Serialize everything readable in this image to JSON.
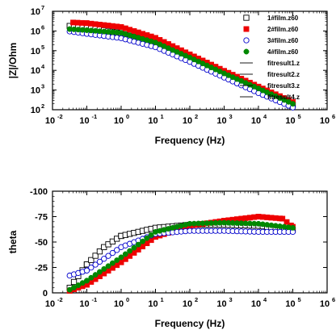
{
  "chart_data": [
    {
      "type": "scatter",
      "xlabel": "Frequency (Hz)",
      "ylabel": "|Z|/Ohm",
      "x_scale": "log",
      "y_scale": "log",
      "xlim": [
        0.01,
        1000000
      ],
      "ylim": [
        100,
        10000000
      ],
      "x_ticks": [
        {
          "base": "10",
          "exp": "-2"
        },
        {
          "base": "10",
          "exp": "-1"
        },
        {
          "base": "10",
          "exp": "0"
        },
        {
          "base": "10",
          "exp": "1"
        },
        {
          "base": "10",
          "exp": "2"
        },
        {
          "base": "10",
          "exp": "3"
        },
        {
          "base": "10",
          "exp": "4"
        },
        {
          "base": "10",
          "exp": "5"
        },
        {
          "base": "10",
          "exp": "6"
        }
      ],
      "y_ticks": [
        {
          "base": "10",
          "exp": "2"
        },
        {
          "base": "10",
          "exp": "3"
        },
        {
          "base": "10",
          "exp": "4"
        },
        {
          "base": "10",
          "exp": "5"
        },
        {
          "base": "10",
          "exp": "6"
        },
        {
          "base": "10",
          "exp": "7"
        }
      ],
      "legend_position": "top-right",
      "legend": [
        {
          "label": "1#film.z60",
          "marker": "square-open",
          "color": "#000000"
        },
        {
          "label": "2#film.z60",
          "marker": "square-filled",
          "color": "#ee0000"
        },
        {
          "label": "3#film.z60",
          "marker": "circle-open",
          "color": "#0000cc"
        },
        {
          "label": "4#film.z60",
          "marker": "circle-filled",
          "color": "#008800"
        },
        {
          "label": "fitresult1.z",
          "marker": "line",
          "color": "#000000"
        },
        {
          "label": "fitresult2.z",
          "marker": "line",
          "color": "#000000"
        },
        {
          "label": "fitresult3.z",
          "marker": "line",
          "color": "#000000"
        },
        {
          "label": "fitresult4.z",
          "marker": "line",
          "color": "#000000"
        }
      ],
      "series": [
        {
          "label_ref": "1#film.z60",
          "color": "#000000",
          "points": [
            [
              0.0316,
              1800000
            ],
            [
              0.1,
              1500000
            ],
            [
              1,
              780000
            ],
            [
              10,
              250000
            ],
            [
              100,
              40000
            ],
            [
              1000,
              6000
            ],
            [
              10000,
              1000
            ],
            [
              100000,
              180
            ]
          ]
        },
        {
          "label_ref": "2#film.z60",
          "color": "#ee0000",
          "points": [
            [
              0.04,
              2700000
            ],
            [
              0.1,
              2500000
            ],
            [
              1,
              1600000
            ],
            [
              10,
              450000
            ],
            [
              100,
              65000
            ],
            [
              1000,
              9500
            ],
            [
              10000,
              1500
            ],
            [
              100000,
              250
            ]
          ]
        },
        {
          "label_ref": "3#film.z60",
          "color": "#0000cc",
          "points": [
            [
              0.0316,
              950000
            ],
            [
              0.1,
              720000
            ],
            [
              1,
              430000
            ],
            [
              10,
              150000
            ],
            [
              100,
              27000
            ],
            [
              1000,
              4300
            ],
            [
              10000,
              700
            ],
            [
              100000,
              130
            ]
          ]
        },
        {
          "label_ref": "4#film.z60",
          "color": "#008800",
          "points": [
            [
              0.0316,
              1250000
            ],
            [
              0.1,
              1100000
            ],
            [
              1,
              800000
            ],
            [
              10,
              260000
            ],
            [
              100,
              45000
            ],
            [
              1000,
              7000
            ],
            [
              10000,
              1200
            ],
            [
              100000,
              200
            ]
          ]
        }
      ]
    },
    {
      "type": "scatter",
      "xlabel": "Frequency (Hz)",
      "ylabel": "theta",
      "x_scale": "log",
      "xlim": [
        0.01,
        1000000
      ],
      "ylim": [
        0,
        -100
      ],
      "y_ticks": [
        "0",
        "-25",
        "-50",
        "-75",
        "-100"
      ],
      "x_ticks": [
        {
          "base": "10",
          "exp": "-2"
        },
        {
          "base": "10",
          "exp": "-1"
        },
        {
          "base": "10",
          "exp": "0"
        },
        {
          "base": "10",
          "exp": "1"
        },
        {
          "base": "10",
          "exp": "2"
        },
        {
          "base": "10",
          "exp": "3"
        },
        {
          "base": "10",
          "exp": "4"
        },
        {
          "base": "10",
          "exp": "5"
        },
        {
          "base": "10",
          "exp": "6"
        }
      ],
      "series": [
        {
          "label_ref": "1#film.z60",
          "color": "#000000",
          "points": [
            [
              0.0316,
              -5
            ],
            [
              0.1,
              -28
            ],
            [
              0.316,
              -45
            ],
            [
              1,
              -56
            ],
            [
              10,
              -64
            ],
            [
              100,
              -67
            ],
            [
              1000,
              -67
            ],
            [
              10000,
              -66
            ],
            [
              100000,
              -62
            ]
          ]
        },
        {
          "label_ref": "2#film.z60",
          "color": "#ee0000",
          "points": [
            [
              0.0316,
              -2
            ],
            [
              0.1,
              -8
            ],
            [
              1,
              -30
            ],
            [
              10,
              -55
            ],
            [
              100,
              -66
            ],
            [
              1000,
              -71
            ],
            [
              10000,
              -75
            ],
            [
              50000,
              -73
            ],
            [
              100000,
              -65
            ]
          ]
        },
        {
          "label_ref": "3#film.z60",
          "color": "#0000cc",
          "points": [
            [
              0.0316,
              -17
            ],
            [
              0.1,
              -22
            ],
            [
              1,
              -45
            ],
            [
              10,
              -58
            ],
            [
              100,
              -61
            ],
            [
              1000,
              -61
            ],
            [
              10000,
              -60
            ],
            [
              100000,
              -60
            ]
          ]
        },
        {
          "label_ref": "4#film.z60",
          "color": "#008800",
          "points": [
            [
              0.0316,
              -3
            ],
            [
              0.1,
              -12
            ],
            [
              1,
              -35
            ],
            [
              10,
              -60
            ],
            [
              100,
              -68
            ],
            [
              1000,
              -69
            ],
            [
              10000,
              -68
            ],
            [
              100000,
              -64
            ]
          ]
        }
      ]
    }
  ]
}
